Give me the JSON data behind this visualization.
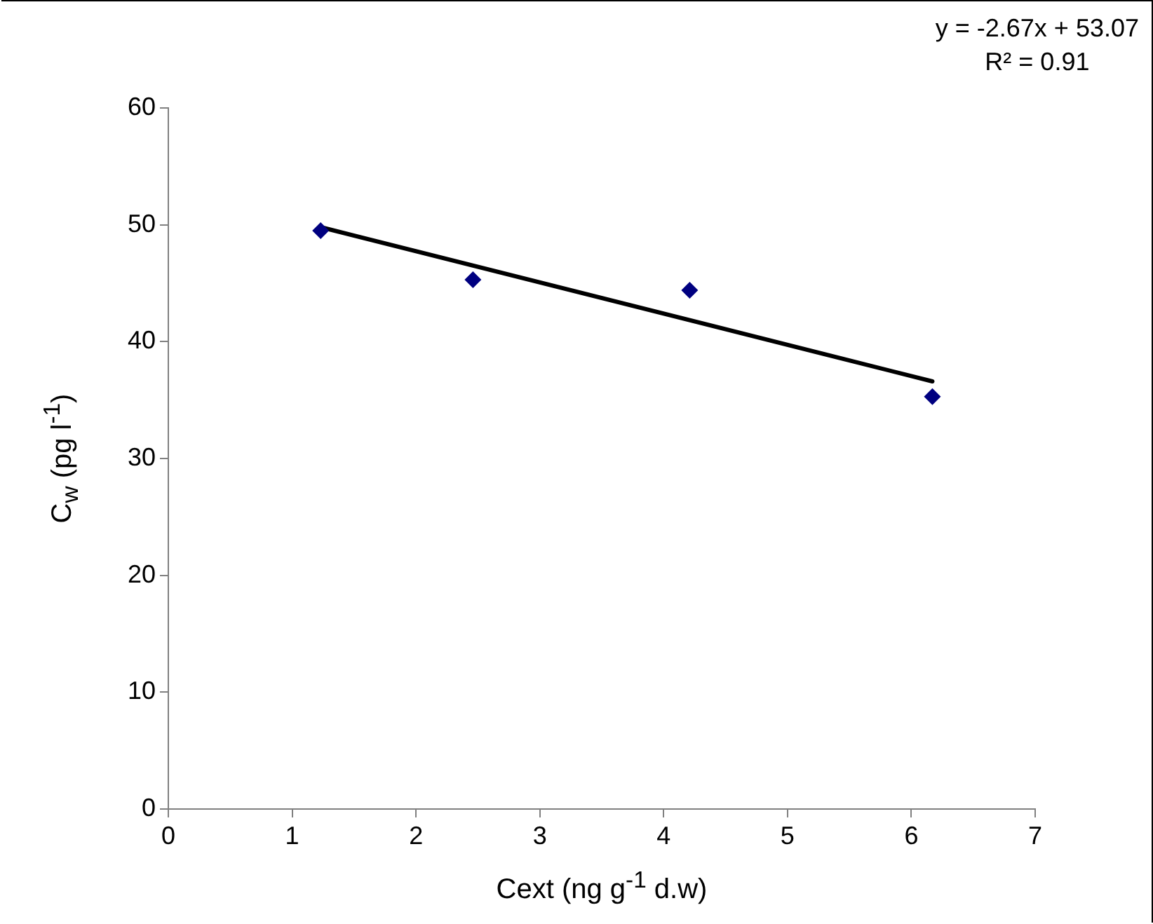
{
  "chart_data": {
    "type": "scatter",
    "xlabel": "Cext (ng g$^{-1}$ d.w)",
    "ylabel": "C$_{w}$ (pg l$^{-1}$)",
    "annotations": [
      "y = -2.67x + 53.07",
      "R² = 0.91"
    ],
    "x": [
      1.23,
      2.46,
      4.21,
      6.17
    ],
    "series": [
      {
        "color": "#000080",
        "values": [
          49.5,
          45.3,
          44.4,
          35.3
        ],
        "marker": "diamond"
      },
      {
        "type": "line",
        "color": "#000000",
        "x": [
          1.23,
          6.17
        ],
        "values": [
          49.8,
          36.6
        ],
        "marker": "none",
        "line_style": "solid"
      }
    ],
    "xlim": [
      0,
      7
    ],
    "xticks": [
      0,
      1,
      2,
      3,
      4,
      5,
      6,
      7
    ],
    "ylim": [
      0,
      60
    ],
    "yticks": [
      0,
      10,
      20,
      30,
      40,
      50,
      60
    ],
    "grid": false,
    "legend": false
  }
}
